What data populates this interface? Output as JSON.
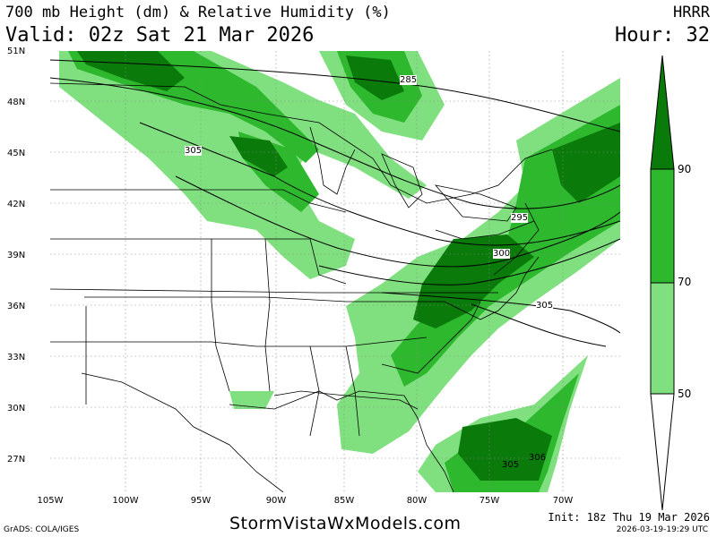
{
  "header": {
    "title": "700 mb Height (dm) & Relative Humidity (%)",
    "model": "HRRR",
    "valid": "Valid: 02z Sat 21 Mar 2026",
    "hour": "Hour: 32"
  },
  "map": {
    "lat_labels": [
      "51N",
      "48N",
      "45N",
      "42N",
      "39N",
      "36N",
      "33N",
      "30N",
      "27N"
    ],
    "lon_labels": [
      "105W",
      "100W",
      "95W",
      "90W",
      "85W",
      "80W",
      "75W",
      "70W"
    ],
    "contour_labels": [
      "285",
      "295",
      "300",
      "305",
      "305",
      "305",
      "306"
    ],
    "colors": {
      "rh_50": "#80e080",
      "rh_70": "#2eb82e",
      "rh_90": "#0a7a0a",
      "contour": "#000000",
      "borders": "#000000"
    }
  },
  "colorbar": {
    "labels": [
      "90",
      "70",
      "50"
    ]
  },
  "footer": {
    "grads": "GrADS: COLA/IGES",
    "site": "StormVistaWxModels.com",
    "init": "Init: 18z Thu 19 Mar 2026",
    "generated": "2026-03-19-19:29 UTC"
  }
}
